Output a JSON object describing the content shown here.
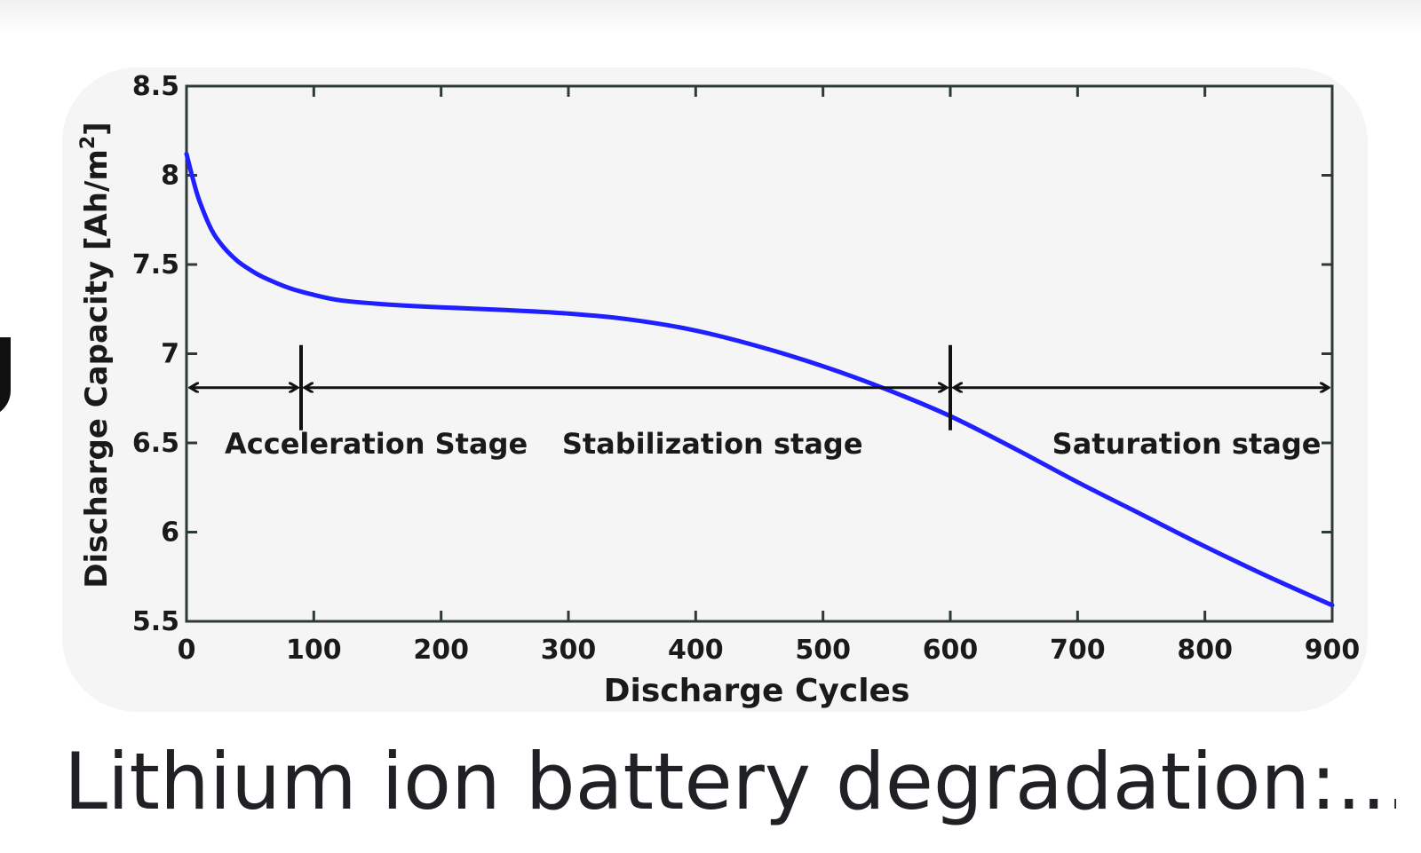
{
  "caption": "Lithium ion battery degradation:...",
  "chart_data": {
    "type": "line",
    "title": "",
    "xlabel": "Discharge Cycles",
    "ylabel": "Discharge Capacity [Ah/m",
    "ylabel_sup": "2",
    "ylabel_close": "]",
    "xlim": [
      0,
      900
    ],
    "ylim": [
      5.5,
      8.5
    ],
    "x_ticks": [
      "0",
      "100",
      "200",
      "300",
      "400",
      "500",
      "600",
      "700",
      "800",
      "900"
    ],
    "y_ticks": [
      "5.5",
      "6",
      "6.5",
      "7",
      "7.5",
      "8",
      "8.5"
    ],
    "grid": false,
    "series": [
      {
        "color": "#1f1fff",
        "x": [
          0,
          5,
          10,
          20,
          30,
          40,
          50,
          60,
          80,
          100,
          120,
          150,
          200,
          250,
          300,
          350,
          400,
          450,
          500,
          550,
          600,
          650,
          700,
          750,
          800,
          850,
          900
        ],
        "y": [
          8.12,
          7.98,
          7.86,
          7.69,
          7.59,
          7.52,
          7.47,
          7.43,
          7.37,
          7.33,
          7.3,
          7.28,
          7.26,
          7.245,
          7.225,
          7.19,
          7.13,
          7.04,
          6.93,
          6.8,
          6.65,
          6.47,
          6.28,
          6.1,
          5.92,
          5.75,
          5.59
        ]
      }
    ],
    "stage_boundaries": [
      90,
      600
    ],
    "stage_arrow_y": 6.81,
    "annotations": [
      {
        "text": "Acceleration Stage",
        "x": 30,
        "y": 6.5
      },
      {
        "text": "Stabilization stage",
        "x": 295,
        "y": 6.5
      },
      {
        "text": "Saturation stage",
        "x": 680,
        "y": 6.5
      }
    ]
  }
}
